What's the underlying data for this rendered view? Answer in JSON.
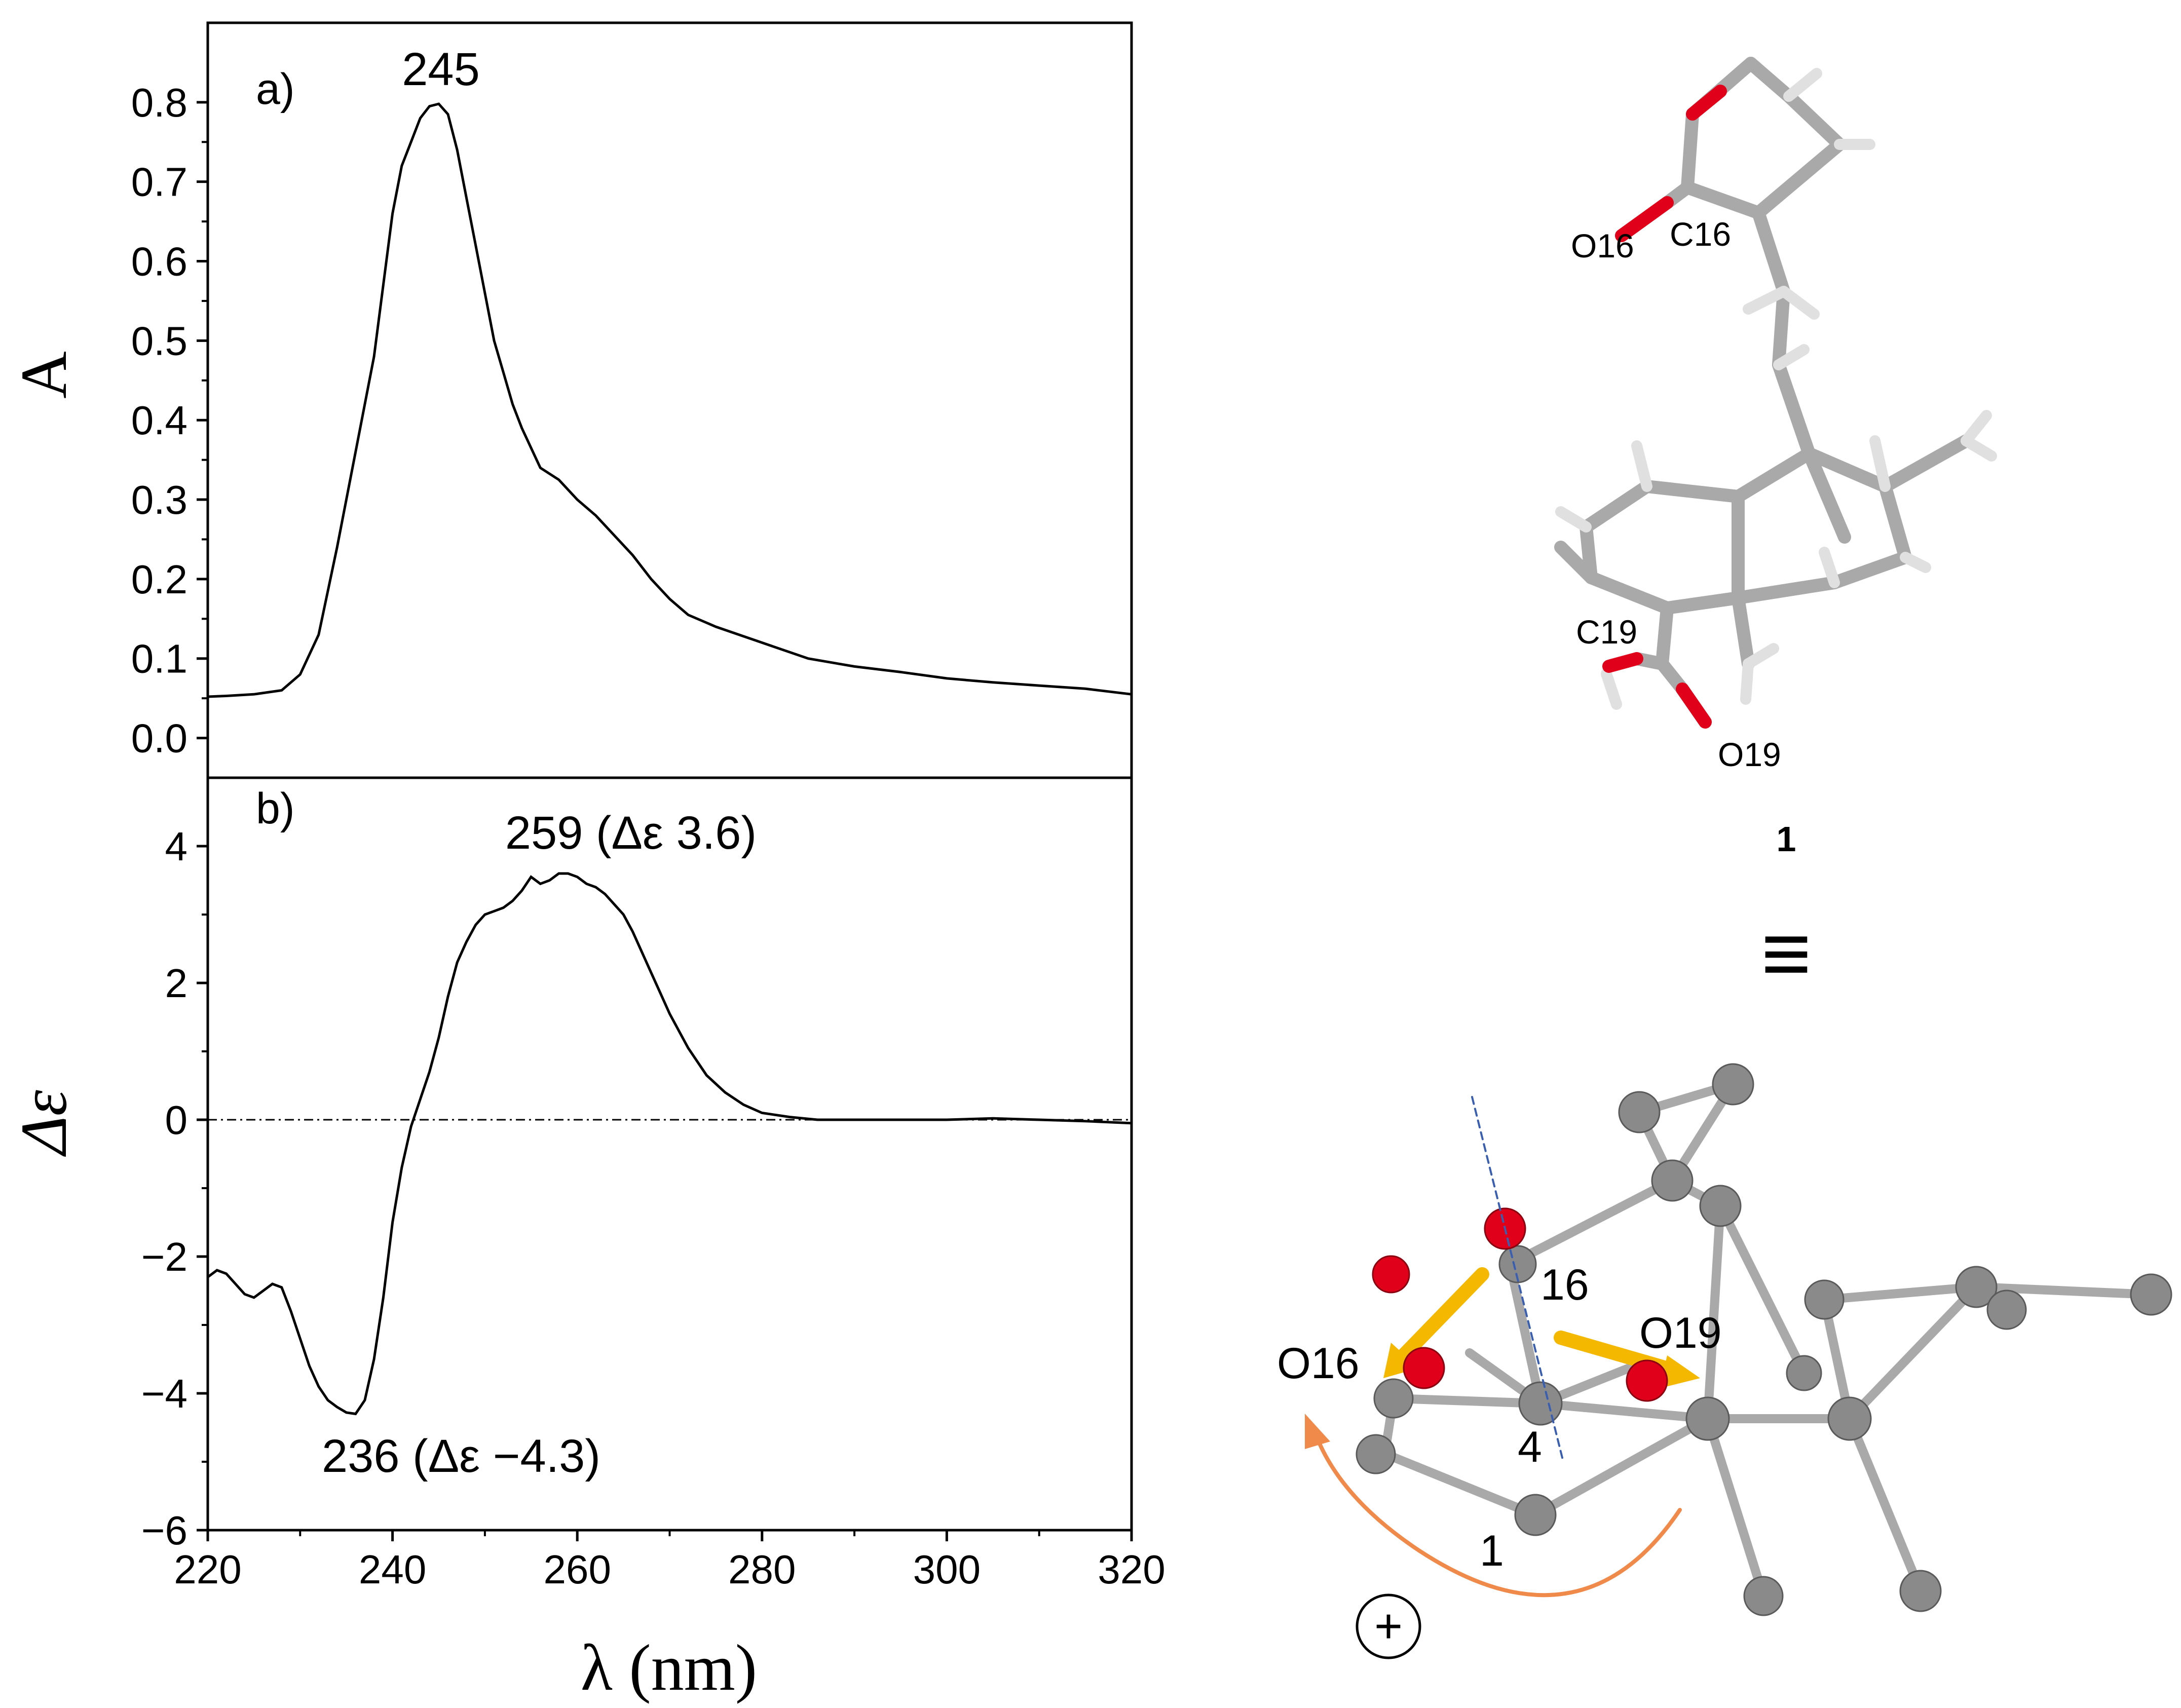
{
  "chart_data": [
    {
      "type": "line",
      "panel_label": "a)",
      "xlabel": "λ (nm)",
      "ylabel": "A",
      "xlim": [
        220,
        320
      ],
      "ylim": [
        -0.05,
        0.9
      ],
      "x_ticks": [
        "220",
        "240",
        "260",
        "280",
        "300",
        "320"
      ],
      "y_ticks": [
        "0.0",
        "0.1",
        "0.2",
        "0.3",
        "0.4",
        "0.5",
        "0.6",
        "0.7",
        "0.8"
      ],
      "y_tick_values": [
        0.0,
        0.1,
        0.2,
        0.3,
        0.4,
        0.5,
        0.6,
        0.7,
        0.8
      ],
      "annotations": [
        {
          "text": "245",
          "x": 245,
          "y": 0.8
        }
      ],
      "series": [
        {
          "x": [
            220,
            222,
            225,
            228,
            230,
            232,
            234,
            236,
            238,
            240,
            241,
            242,
            243,
            244,
            245,
            246,
            247,
            248,
            249,
            250,
            251,
            252,
            253,
            254,
            256,
            258,
            260,
            262,
            264,
            266,
            268,
            270,
            272,
            275,
            280,
            285,
            290,
            295,
            300,
            305,
            310,
            315,
            320
          ],
          "y": [
            0.052,
            0.053,
            0.055,
            0.06,
            0.08,
            0.13,
            0.24,
            0.36,
            0.48,
            0.66,
            0.72,
            0.75,
            0.78,
            0.795,
            0.798,
            0.785,
            0.74,
            0.68,
            0.62,
            0.56,
            0.5,
            0.46,
            0.42,
            0.39,
            0.34,
            0.325,
            0.3,
            0.28,
            0.255,
            0.23,
            0.2,
            0.175,
            0.155,
            0.14,
            0.12,
            0.1,
            0.09,
            0.083,
            0.075,
            0.07,
            0.066,
            0.062,
            0.055
          ]
        }
      ]
    },
    {
      "type": "line",
      "panel_label": "b)",
      "xlabel": "λ (nm)",
      "ylabel": "Δε",
      "xlim": [
        220,
        320
      ],
      "ylim": [
        -6,
        5
      ],
      "x_ticks": [
        "220",
        "240",
        "260",
        "280",
        "300",
        "320"
      ],
      "y_ticks": [
        "4",
        "2",
        "0",
        "−2",
        "−4",
        "−6"
      ],
      "y_tick_values": [
        4,
        2,
        0,
        -2,
        -4,
        -6
      ],
      "zero_line": true,
      "annotations": [
        {
          "text": "259 (Δε 3.6)",
          "x": 259,
          "y": 3.6
        },
        {
          "text": "236 (Δε −4.3)",
          "x": 236,
          "y": -4.3
        }
      ],
      "series": [
        {
          "x": [
            220,
            221,
            222,
            223,
            224,
            225,
            226,
            227,
            228,
            229,
            230,
            231,
            232,
            233,
            234,
            235,
            236,
            237,
            238,
            239,
            240,
            241,
            242,
            243,
            244,
            245,
            246,
            247,
            248,
            249,
            250,
            251,
            252,
            253,
            254,
            255,
            256,
            257,
            258,
            259,
            260,
            261,
            262,
            263,
            264,
            265,
            266,
            267,
            268,
            269,
            270,
            272,
            274,
            276,
            278,
            280,
            283,
            286,
            290,
            295,
            300,
            305,
            310,
            315,
            320
          ],
          "y": [
            -2.3,
            -2.2,
            -2.25,
            -2.4,
            -2.55,
            -2.6,
            -2.5,
            -2.4,
            -2.45,
            -2.8,
            -3.2,
            -3.6,
            -3.9,
            -4.1,
            -4.2,
            -4.28,
            -4.3,
            -4.1,
            -3.5,
            -2.6,
            -1.5,
            -0.7,
            -0.1,
            0.3,
            0.7,
            1.2,
            1.8,
            2.3,
            2.6,
            2.85,
            3.0,
            3.05,
            3.1,
            3.2,
            3.35,
            3.55,
            3.45,
            3.5,
            3.6,
            3.6,
            3.55,
            3.45,
            3.4,
            3.3,
            3.15,
            3.0,
            2.75,
            2.45,
            2.15,
            1.85,
            1.55,
            1.05,
            0.65,
            0.4,
            0.22,
            0.1,
            0.04,
            0.0,
            0.0,
            0.0,
            0.0,
            0.02,
            0.0,
            -0.02,
            -0.05
          ]
        }
      ]
    }
  ],
  "structures": {
    "top_labels": [
      "O16",
      "C16",
      "C19",
      "O19"
    ],
    "compound_label": "1",
    "equivalence_symbol": "≡",
    "bottom_labels": {
      "c16": "16",
      "o16": "O16",
      "o19": "O19",
      "c4": "4",
      "c1": "1",
      "sign": "+"
    },
    "colors": {
      "oxygen": "#e0001a",
      "carbon_atom": "#8a8a8a",
      "bond": "#a9a9a9",
      "hydrogen": "#e6e6e6",
      "dipole_arrow": "#f5b800",
      "rotation_arrow": "#f08a4b",
      "axis_line": "#3a5fb0"
    }
  }
}
